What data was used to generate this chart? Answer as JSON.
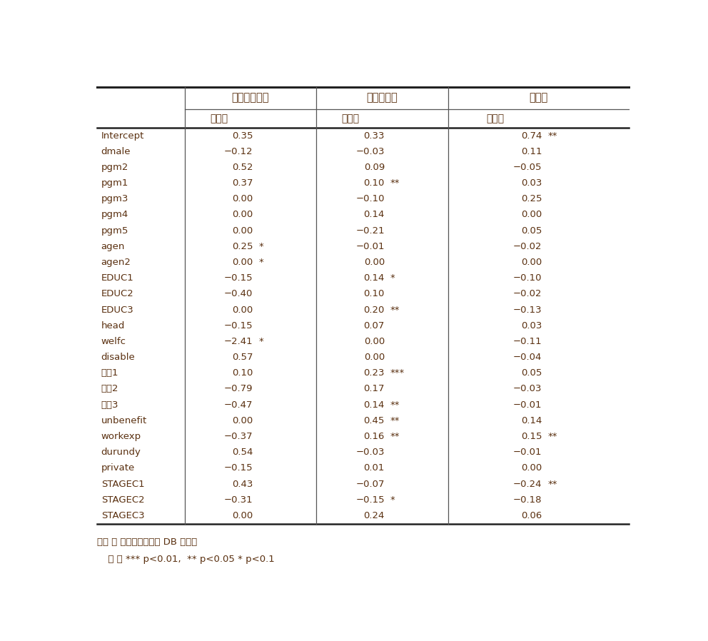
{
  "col_headers_level1": [
    "북한이탈주민",
    "결혼이민자",
    "출소자"
  ],
  "col_headers_level2": [
    "추정치",
    "추정치",
    "추정치"
  ],
  "rows": [
    {
      "label": "Intercept",
      "col1": "0.35",
      "sig1": "",
      "col2": "0.33",
      "sig2": "",
      "col3": "0.74",
      "sig3": "**"
    },
    {
      "label": "dmale",
      "col1": "−0.12",
      "sig1": "",
      "col2": "−0.03",
      "sig2": "",
      "col3": "0.11",
      "sig3": ""
    },
    {
      "label": "pgm2",
      "col1": "0.52",
      "sig1": "",
      "col2": "0.09",
      "sig2": "",
      "col3": "−0.05",
      "sig3": ""
    },
    {
      "label": "pgm1",
      "col1": "0.37",
      "sig1": "",
      "col2": "0.10",
      "sig2": "**",
      "col3": "0.03",
      "sig3": ""
    },
    {
      "label": "pgm3",
      "col1": "0.00",
      "sig1": "",
      "col2": "−0.10",
      "sig2": "",
      "col3": "0.25",
      "sig3": ""
    },
    {
      "label": "pgm4",
      "col1": "0.00",
      "sig1": "",
      "col2": "0.14",
      "sig2": "",
      "col3": "0.00",
      "sig3": ""
    },
    {
      "label": "pgm5",
      "col1": "0.00",
      "sig1": "",
      "col2": "−0.21",
      "sig2": "",
      "col3": "0.05",
      "sig3": ""
    },
    {
      "label": "agen",
      "col1": "0.25",
      "sig1": "*",
      "col2": "−0.01",
      "sig2": "",
      "col3": "−0.02",
      "sig3": ""
    },
    {
      "label": "agen2",
      "col1": "0.00",
      "sig1": "*",
      "col2": "0.00",
      "sig2": "",
      "col3": "0.00",
      "sig3": ""
    },
    {
      "label": "EDUC1",
      "col1": "−0.15",
      "sig1": "",
      "col2": "0.14",
      "sig2": "*",
      "col3": "−0.10",
      "sig3": ""
    },
    {
      "label": "EDUC2",
      "col1": "−0.40",
      "sig1": "",
      "col2": "0.10",
      "sig2": "",
      "col3": "−0.02",
      "sig3": ""
    },
    {
      "label": "EDUC3",
      "col1": "0.00",
      "sig1": "",
      "col2": "0.20",
      "sig2": "**",
      "col3": "−0.13",
      "sig3": ""
    },
    {
      "label": "head",
      "col1": "−0.15",
      "sig1": "",
      "col2": "0.07",
      "sig2": "",
      "col3": "0.03",
      "sig3": ""
    },
    {
      "label": "welfc",
      "col1": "−2.41",
      "sig1": "*",
      "col2": "0.00",
      "sig2": "",
      "col3": "−0.11",
      "sig3": ""
    },
    {
      "label": "disable",
      "col1": "0.57",
      "sig1": "",
      "col2": "0.00",
      "sig2": "",
      "col3": "−0.04",
      "sig3": ""
    },
    {
      "label": "코드1",
      "col1": "0.10",
      "sig1": "",
      "col2": "0.23",
      "sig2": "***",
      "col3": "0.05",
      "sig3": ""
    },
    {
      "label": "코드2",
      "col1": "−0.79",
      "sig1": "",
      "col2": "0.17",
      "sig2": "",
      "col3": "−0.03",
      "sig3": ""
    },
    {
      "label": "코드3",
      "col1": "−0.47",
      "sig1": "",
      "col2": "0.14",
      "sig2": "**",
      "col3": "−0.01",
      "sig3": ""
    },
    {
      "label": "unbenefit",
      "col1": "0.00",
      "sig1": "",
      "col2": "0.45",
      "sig2": "**",
      "col3": "0.14",
      "sig3": ""
    },
    {
      "label": "workexp",
      "col1": "−0.37",
      "sig1": "",
      "col2": "0.16",
      "sig2": "**",
      "col3": "0.15",
      "sig3": "**"
    },
    {
      "label": "durundy",
      "col1": "0.54",
      "sig1": "",
      "col2": "−0.03",
      "sig2": "",
      "col3": "−0.01",
      "sig3": ""
    },
    {
      "label": "private",
      "col1": "−0.15",
      "sig1": "",
      "col2": "0.01",
      "sig2": "",
      "col3": "0.00",
      "sig3": ""
    },
    {
      "label": "STAGEC1",
      "col1": "0.43",
      "sig1": "",
      "col2": "−0.07",
      "sig2": "",
      "col3": "−0.24",
      "sig3": "**"
    },
    {
      "label": "STAGEC2",
      "col1": "−0.31",
      "sig1": "",
      "col2": "−0.15",
      "sig2": "*",
      "col3": "−0.18",
      "sig3": ""
    },
    {
      "label": "STAGEC3",
      "col1": "0.00",
      "sig1": "",
      "col2": "0.24",
      "sig2": "",
      "col3": "0.06",
      "sig3": ""
    }
  ],
  "footer1": "자료 ： 취업성공패키지 DB 원자료",
  "footer2": "  주 ： *** p<0.01,  ** p<0.05 * p<0.1",
  "text_color": "#5a3010",
  "line_color": "#222222",
  "bg_color": "#ffffff"
}
